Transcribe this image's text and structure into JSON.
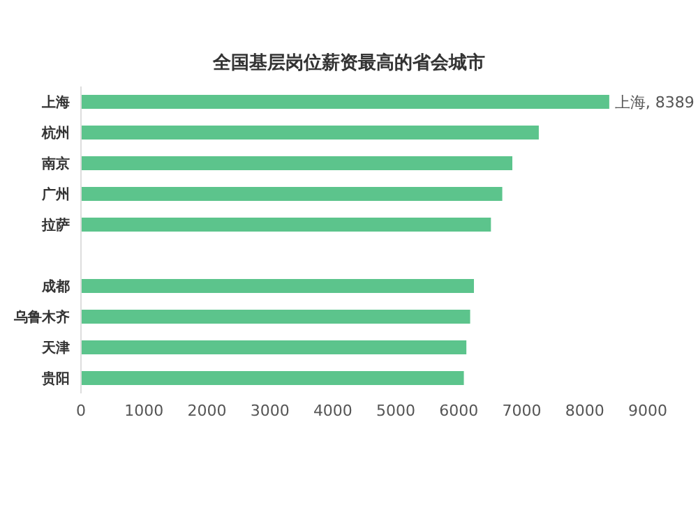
{
  "chart_data": {
    "type": "bar",
    "orientation": "horizontal",
    "title": "全国基层岗位薪资最高的省会城市",
    "categories": [
      "上海",
      "杭州",
      "南京",
      "广州",
      "拉萨",
      null,
      "成都",
      "乌鲁木齐",
      "天津",
      "贵阳"
    ],
    "values": [
      8389,
      7270,
      6850,
      6690,
      6510,
      null,
      6240,
      6180,
      6120,
      6080
    ],
    "value_labels": [
      "上海, 8389",
      null,
      null,
      null,
      null,
      null,
      null,
      null,
      null,
      null
    ],
    "color": "#5cc48c",
    "xlim": [
      0,
      9000
    ],
    "xticks": [
      0,
      1000,
      2000,
      3000,
      4000,
      5000,
      6000,
      7000,
      8000,
      9000
    ],
    "grid": false,
    "legend": false
  }
}
